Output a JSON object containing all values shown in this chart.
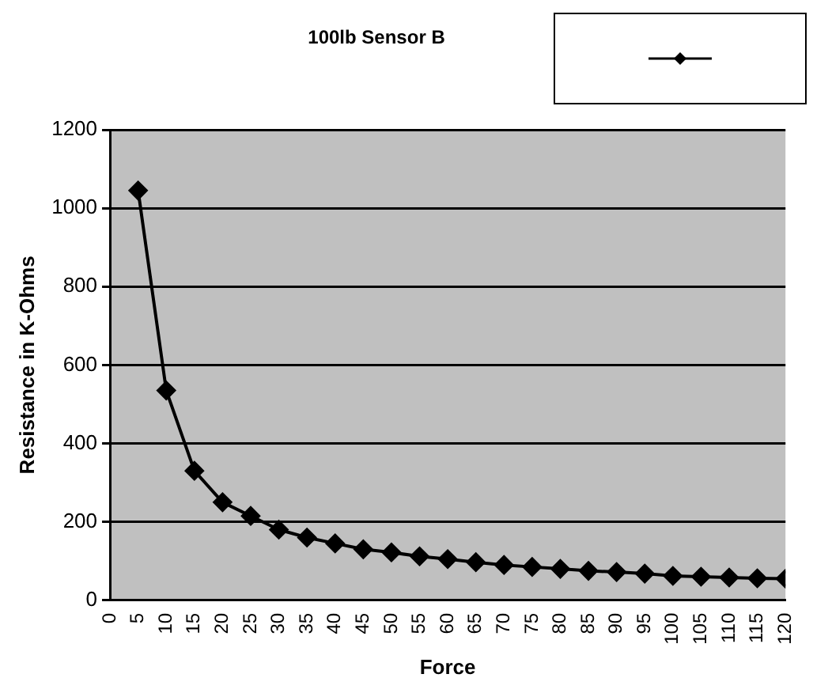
{
  "chart_data": {
    "type": "line",
    "title": "100lb Sensor B",
    "xlabel": "Force",
    "ylabel": "Resistance in K-Ohms",
    "x": [
      5,
      10,
      15,
      20,
      25,
      30,
      35,
      40,
      45,
      50,
      55,
      60,
      65,
      70,
      75,
      80,
      85,
      90,
      95,
      100,
      105,
      110,
      115,
      120
    ],
    "series": [
      {
        "color": "#000000",
        "values": [
          1045,
          535,
          330,
          250,
          215,
          180,
          160,
          145,
          130,
          122,
          112,
          105,
          97,
          90,
          85,
          80,
          75,
          72,
          68,
          62,
          60,
          58,
          56,
          55
        ]
      }
    ],
    "xlim": [
      0,
      120
    ],
    "xticks": [
      0,
      5,
      10,
      15,
      20,
      25,
      30,
      35,
      40,
      45,
      50,
      55,
      60,
      65,
      70,
      75,
      80,
      85,
      90,
      95,
      100,
      105,
      110,
      115,
      120
    ],
    "ylim": [
      0,
      1200
    ],
    "yticks": [
      0,
      200,
      400,
      600,
      800,
      1000,
      1200
    ],
    "grid": "y",
    "marker": "diamond",
    "line_style": "solid"
  }
}
